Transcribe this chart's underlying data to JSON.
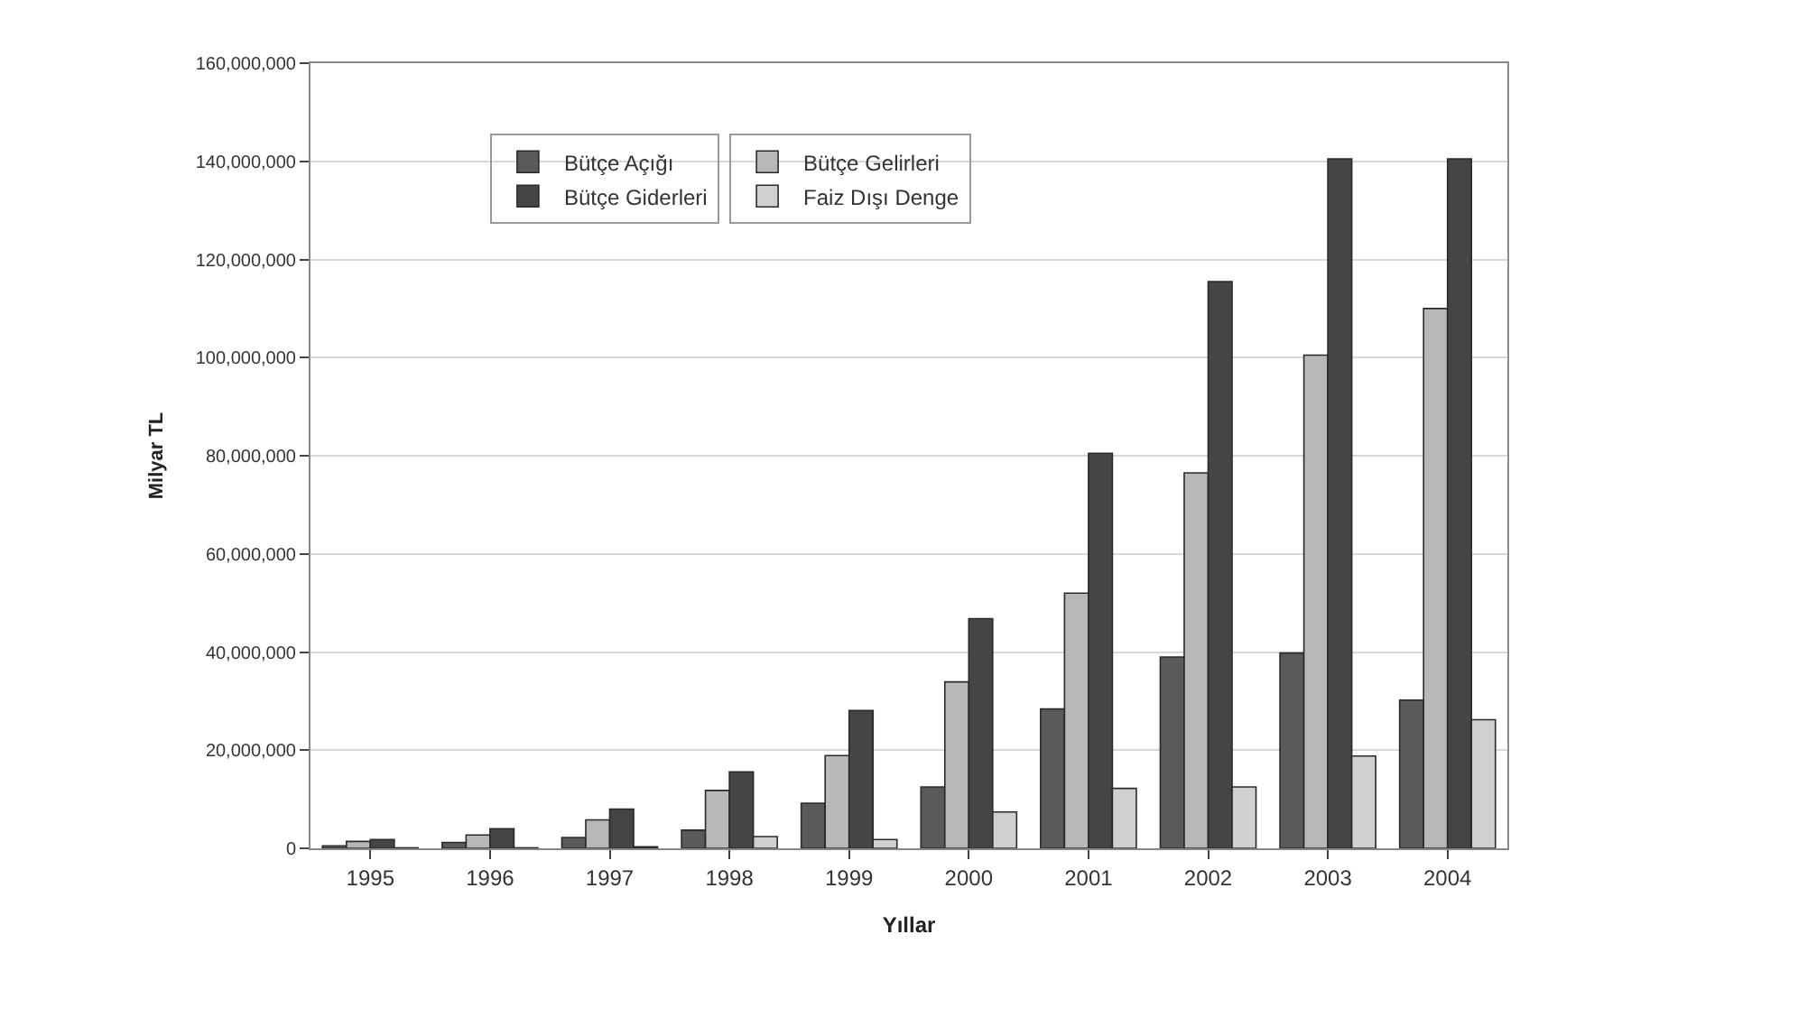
{
  "chart_data": {
    "type": "bar",
    "xlabel": "Yıllar",
    "ylabel": "Milyar TL",
    "categories": [
      "1995",
      "1996",
      "1997",
      "1998",
      "1999",
      "2000",
      "2001",
      "2002",
      "2003",
      "2004"
    ],
    "series": [
      {
        "name": "Bütçe Açığı",
        "color": "#5a5a5a",
        "values": [
          500000,
          1200000,
          2200000,
          3700000,
          9200000,
          12500000,
          28400000,
          39000000,
          39800000,
          30200000
        ]
      },
      {
        "name": "Bütçe Gelirleri",
        "color": "#b8b8b8",
        "values": [
          1400000,
          2700000,
          5800000,
          11800000,
          18900000,
          33900000,
          52000000,
          76500000,
          100500000,
          110000000
        ]
      },
      {
        "name": "Bütçe Giderleri",
        "color": "#454545",
        "values": [
          1800000,
          4000000,
          8000000,
          15600000,
          28100000,
          46800000,
          80500000,
          115500000,
          140500000,
          140500000
        ]
      },
      {
        "name": "Faiz Dışı Denge",
        "color": "#d0d0d0",
        "values": [
          100000,
          100000,
          300000,
          2400000,
          1800000,
          7400000,
          12200000,
          12500000,
          18800000,
          26200000
        ]
      }
    ],
    "ylim": [
      0,
      160000000
    ],
    "yticks": [
      {
        "value": 0,
        "label": "0"
      },
      {
        "value": 20000000,
        "label": "20,000,000"
      },
      {
        "value": 40000000,
        "label": "40,000,000"
      },
      {
        "value": 60000000,
        "label": "60,000,000"
      },
      {
        "value": 80000000,
        "label": "80,000,000"
      },
      {
        "value": 100000000,
        "label": "100,000,000"
      },
      {
        "value": 120000000,
        "label": "120,000,000"
      },
      {
        "value": 140000000,
        "label": "140,000,000"
      },
      {
        "value": 160000000,
        "label": "160,000,000"
      }
    ],
    "grid": "y",
    "legend": "top left"
  }
}
